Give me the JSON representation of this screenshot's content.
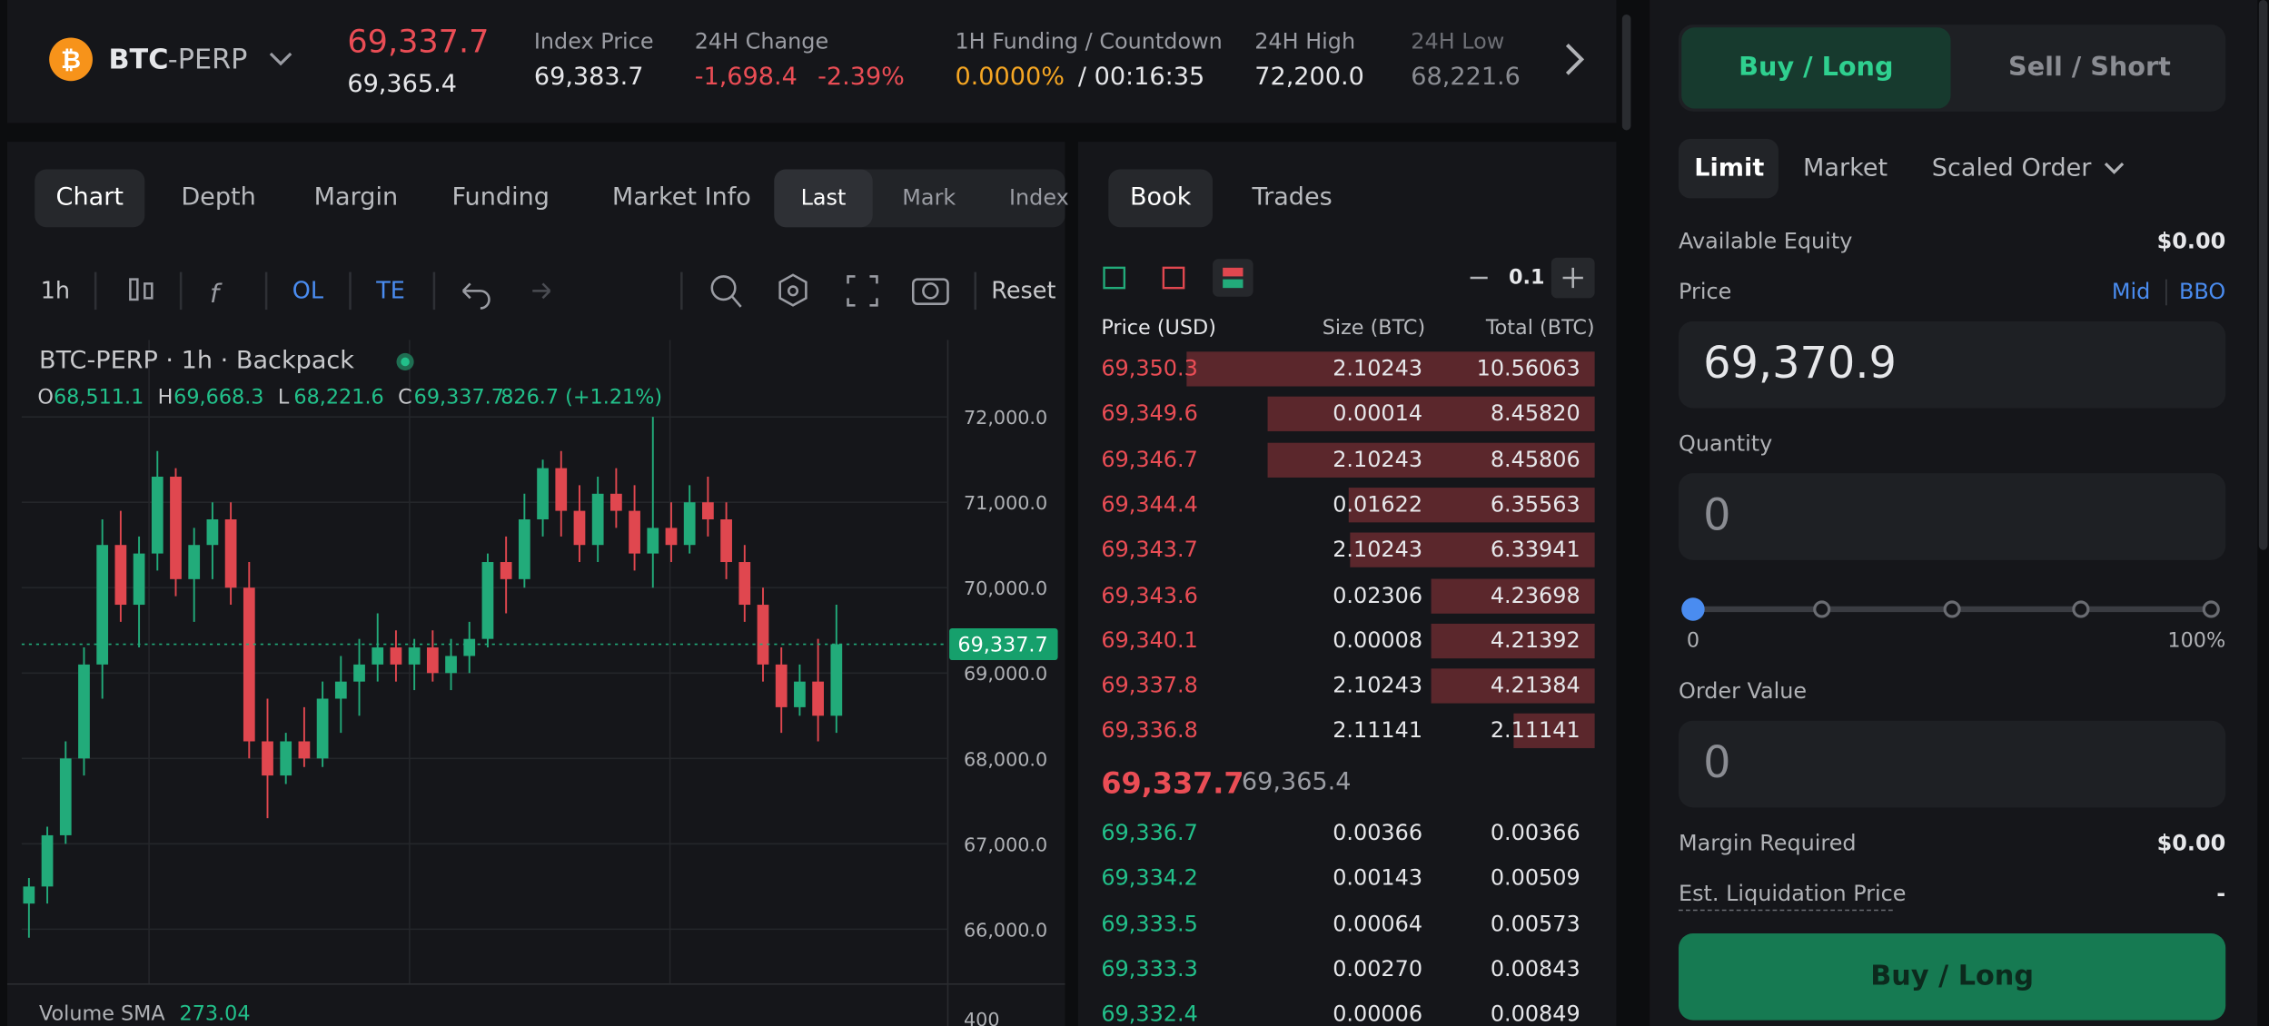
{
  "header": {
    "symbol_base": "BTC",
    "symbol_suffix": "-PERP",
    "last_price": "69,337.7",
    "mark_price": "69,365.4",
    "index_label": "Index Price",
    "index_value": "69,383.7",
    "change_label": "24H Change",
    "change_value": "-1,698.4",
    "change_percent": "-2.39%",
    "funding_label": "1H Funding / Countdown",
    "funding_rate": "0.0000%",
    "countdown": "/ 00:16:35",
    "high_label": "24H High",
    "high_value": "72,200.0",
    "low_label": "24H Low",
    "low_value": "68,221.6"
  },
  "chart_tabs": [
    "Chart",
    "Depth",
    "Margin",
    "Funding",
    "Market Info"
  ],
  "price_source_tabs": [
    "Last",
    "Mark",
    "Index"
  ],
  "toolbar": {
    "interval": "1h",
    "ol": "OL",
    "te": "TE",
    "reset": "Reset"
  },
  "chart": {
    "type": "candlestick",
    "title": "BTC-PERP · 1h · Backpack",
    "ohlc": [
      {
        "key": "O",
        "value": "68,511.1"
      },
      {
        "key": "H",
        "value": "69,668.3"
      },
      {
        "key": "L",
        "value": "68,221.6"
      },
      {
        "key": "C",
        "value": "69,337.7"
      }
    ],
    "change": "826.7 (+1.21%)",
    "ylim": [
      65300,
      72900
    ],
    "yticks": [
      {
        "value": 66000,
        "label": "66,000.0"
      },
      {
        "value": 67000,
        "label": "67,000.0"
      },
      {
        "value": 68000,
        "label": "68,000.0"
      },
      {
        "value": 69000,
        "label": "69,000.0"
      },
      {
        "value": 70000,
        "label": "70,000.0"
      },
      {
        "value": 71000,
        "label": "71,000.0"
      },
      {
        "value": 72000,
        "label": "72,000.0"
      }
    ],
    "grid": true,
    "colors": {
      "up": "#22ab7a",
      "down": "#e0474f"
    },
    "candles": [
      [
        66300,
        66600,
        65900,
        66500
      ],
      [
        66500,
        67200,
        66300,
        67100
      ],
      [
        67100,
        68200,
        67000,
        68000
      ],
      [
        68000,
        69300,
        67800,
        69100
      ],
      [
        69100,
        70800,
        68700,
        70500
      ],
      [
        70500,
        70900,
        69600,
        69800
      ],
      [
        69800,
        70600,
        69300,
        70400
      ],
      [
        70400,
        71600,
        70200,
        71300
      ],
      [
        71300,
        71400,
        69900,
        70100
      ],
      [
        70100,
        70700,
        69600,
        70500
      ],
      [
        70500,
        71000,
        70100,
        70800
      ],
      [
        70800,
        71000,
        69800,
        70000
      ],
      [
        70000,
        70300,
        68000,
        68200
      ],
      [
        68200,
        68700,
        67300,
        67800
      ],
      [
        67800,
        68300,
        67700,
        68200
      ],
      [
        68200,
        68600,
        67900,
        68000
      ],
      [
        68000,
        68900,
        67900,
        68700
      ],
      [
        68700,
        69200,
        68300,
        68900
      ],
      [
        68900,
        69400,
        68500,
        69100
      ],
      [
        69100,
        69700,
        68900,
        69300
      ],
      [
        69300,
        69500,
        68900,
        69100
      ],
      [
        69100,
        69400,
        68800,
        69300
      ],
      [
        69300,
        69500,
        68900,
        69000
      ],
      [
        69000,
        69400,
        68800,
        69200
      ],
      [
        69200,
        69600,
        69000,
        69400
      ],
      [
        69400,
        70400,
        69300,
        70300
      ],
      [
        70300,
        70600,
        69700,
        70100
      ],
      [
        70100,
        71100,
        70000,
        70800
      ],
      [
        70800,
        71500,
        70600,
        71400
      ],
      [
        71400,
        71600,
        70600,
        70900
      ],
      [
        70900,
        71200,
        70300,
        70500
      ],
      [
        70500,
        71300,
        70300,
        71100
      ],
      [
        71100,
        71400,
        70700,
        70900
      ],
      [
        70900,
        71200,
        70200,
        70400
      ],
      [
        70400,
        72000,
        70000,
        70700
      ],
      [
        70700,
        71000,
        70300,
        70500
      ],
      [
        70500,
        71200,
        70400,
        71000
      ],
      [
        71000,
        71300,
        70600,
        70800
      ],
      [
        70800,
        71000,
        70100,
        70300
      ],
      [
        70300,
        70500,
        69600,
        69800
      ],
      [
        69800,
        70000,
        68900,
        69100
      ],
      [
        69100,
        69300,
        68300,
        68600
      ],
      [
        68600,
        69100,
        68500,
        68900
      ],
      [
        68900,
        69400,
        68200,
        68500
      ],
      [
        68500,
        69800,
        68300,
        69337.7
      ]
    ],
    "volume_label": "Volume SMA",
    "volume_value": "273.04",
    "volume_tick": "400"
  },
  "order_book": {
    "tabs": [
      "Book",
      "Trades"
    ],
    "step": "0.1",
    "columns": [
      "Price (USD)",
      "Size (BTC)",
      "Total (BTC)"
    ],
    "asks": [
      [
        "69,350.3",
        "2.10243",
        "10.56063"
      ],
      [
        "69,349.6",
        "0.00014",
        "8.45820"
      ],
      [
        "69,346.7",
        "2.10243",
        "8.45806"
      ],
      [
        "69,344.4",
        "0.01622",
        "6.35563"
      ],
      [
        "69,343.7",
        "2.10243",
        "6.33941"
      ],
      [
        "69,343.6",
        "0.02306",
        "4.23698"
      ],
      [
        "69,340.1",
        "0.00008",
        "4.21392"
      ],
      [
        "69,337.8",
        "2.10243",
        "4.21384"
      ],
      [
        "69,336.8",
        "2.11141",
        "2.11141"
      ]
    ],
    "bids": [
      [
        "69,336.7",
        "0.00366",
        "0.00366"
      ],
      [
        "69,334.2",
        "0.00143",
        "0.00509"
      ],
      [
        "69,333.5",
        "0.00064",
        "0.00573"
      ],
      [
        "69,333.3",
        "0.00270",
        "0.00843"
      ],
      [
        "69,332.4",
        "0.00006",
        "0.00849"
      ]
    ]
  },
  "order_form": {
    "sides": [
      "Buy / Long",
      "Sell / Short"
    ],
    "order_types": [
      "Limit",
      "Market",
      "Scaled Order"
    ],
    "equity_label": "Available Equity",
    "equity_value": "$0.00",
    "price_label": "Price",
    "mid": "Mid",
    "bbo": "BBO",
    "price": "69,370.9",
    "quantity_label": "Quantity",
    "quantity": "0",
    "slider_min": "0",
    "slider_max": "100%",
    "value_label": "Order Value",
    "value": "0",
    "margin_label": "Margin Required",
    "margin_value": "$0.00",
    "liq_label": "Est. Liquidation Price",
    "liq_value": "-",
    "submit": "Buy / Long"
  }
}
